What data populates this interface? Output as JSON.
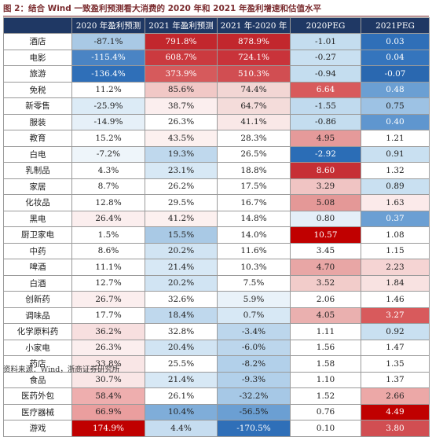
{
  "title": "图 2：结合 Wind 一致盈利预测看大消费的 2020 年和 2021 年盈利增速和估值水平",
  "headers": [
    "",
    "2020 年盈利预测",
    "2021 年盈利预测",
    "2021 年-2020 年",
    "2020PEG",
    "2021PEG"
  ],
  "rows": [
    {
      "name": "酒店",
      "v": [
        "-87.1%",
        "791.8%",
        "878.9%",
        "-1.01",
        "0.03"
      ],
      "bg": [
        "#a9c9e5",
        "#c2272d",
        "#c2272d",
        "#c4ddef",
        "#2f6fb8"
      ],
      "fg": [
        "#222",
        "#fff",
        "#fff",
        "#222",
        "#fff"
      ]
    },
    {
      "name": "电影",
      "v": [
        "-115.4%",
        "608.7%",
        "724.1%",
        "-0.27",
        "0.04"
      ],
      "bg": [
        "#4a84c4",
        "#cb3a3f",
        "#c9333a",
        "#c9e0f1",
        "#3575bd"
      ],
      "fg": [
        "#fff",
        "#fff",
        "#fff",
        "#222",
        "#fff"
      ]
    },
    {
      "name": "旅游",
      "v": [
        "-136.4%",
        "373.9%",
        "510.3%",
        "-0.94",
        "-0.07"
      ],
      "bg": [
        "#2f6fb8",
        "#d65a5c",
        "#d14e52",
        "#c4ddef",
        "#2a68b0"
      ],
      "fg": [
        "#fff",
        "#fff",
        "#fff",
        "#222",
        "#fff"
      ]
    },
    {
      "name": "免税",
      "v": [
        "11.2%",
        "85.6%",
        "74.4%",
        "6.64",
        "0.48"
      ],
      "bg": [
        "#ffffff",
        "#f1c8c6",
        "#f2d6d4",
        "#d85a5c",
        "#6b9fd3"
      ],
      "fg": [
        "#222",
        "#222",
        "#222",
        "#fff",
        "#fff"
      ]
    },
    {
      "name": "新零售",
      "v": [
        "-25.9%",
        "38.7%",
        "64.7%",
        "-1.55",
        "0.75"
      ],
      "bg": [
        "#dcebf6",
        "#fbeeee",
        "#f4dcda",
        "#c0daee",
        "#9dc2e4"
      ],
      "fg": [
        "#222",
        "#222",
        "#222",
        "#222",
        "#222"
      ]
    },
    {
      "name": "服装",
      "v": [
        "-14.9%",
        "26.3%",
        "41.1%",
        "-0.86",
        "0.40"
      ],
      "bg": [
        "#e6f0f8",
        "#ffffff",
        "#f9e8e7",
        "#c4ddef",
        "#5f96cf"
      ],
      "fg": [
        "#222",
        "#222",
        "#222",
        "#222",
        "#fff"
      ]
    },
    {
      "name": "教育",
      "v": [
        "15.2%",
        "43.5%",
        "28.3%",
        "4.95",
        "1.21"
      ],
      "bg": [
        "#ffffff",
        "#fcf0ef",
        "#ffffff",
        "#e59a9a",
        "#ffffff"
      ],
      "fg": [
        "#222",
        "#222",
        "#222",
        "#222",
        "#222"
      ]
    },
    {
      "name": "白电",
      "v": [
        "-7.2%",
        "19.3%",
        "26.5%",
        "-2.92",
        "0.91"
      ],
      "bg": [
        "#eef5fa",
        "#bfd8ed",
        "#ffffff",
        "#2b6db6",
        "#c9e0f1"
      ],
      "fg": [
        "#222",
        "#222",
        "#222",
        "#fff",
        "#222"
      ]
    },
    {
      "name": "乳制品",
      "v": [
        "4.3%",
        "23.1%",
        "18.8%",
        "8.60",
        "1.32"
      ],
      "bg": [
        "#ffffff",
        "#d7e8f5",
        "#ffffff",
        "#c62f35",
        "#ffffff"
      ],
      "fg": [
        "#222",
        "#222",
        "#222",
        "#fff",
        "#222"
      ]
    },
    {
      "name": "家居",
      "v": [
        "8.7%",
        "26.2%",
        "17.5%",
        "3.29",
        "0.89"
      ],
      "bg": [
        "#ffffff",
        "#ffffff",
        "#ffffff",
        "#f0c4c3",
        "#c9e0f1"
      ],
      "fg": [
        "#222",
        "#222",
        "#222",
        "#222",
        "#222"
      ]
    },
    {
      "name": "化妆品",
      "v": [
        "12.8%",
        "29.5%",
        "16.7%",
        "5.08",
        "1.63"
      ],
      "bg": [
        "#ffffff",
        "#ffffff",
        "#ffffff",
        "#e49897",
        "#fbeaea"
      ],
      "fg": [
        "#222",
        "#222",
        "#222",
        "#222",
        "#222"
      ]
    },
    {
      "name": "黑电",
      "v": [
        "26.4%",
        "41.2%",
        "14.8%",
        "0.80",
        "0.37"
      ],
      "bg": [
        "#fbeeee",
        "#fcf0ef",
        "#ffffff",
        "#e4eff8",
        "#6b9fd3"
      ],
      "fg": [
        "#222",
        "#222",
        "#222",
        "#222",
        "#fff"
      ]
    },
    {
      "name": "厨卫家电",
      "v": [
        "1.5%",
        "15.5%",
        "14.0%",
        "10.57",
        "1.08"
      ],
      "bg": [
        "#ffffff",
        "#a9c9e5",
        "#ffffff",
        "#c00000",
        "#ffffff"
      ],
      "fg": [
        "#222",
        "#222",
        "#222",
        "#fff",
        "#222"
      ]
    },
    {
      "name": "中药",
      "v": [
        "8.6%",
        "20.2%",
        "11.6%",
        "3.45",
        "1.15"
      ],
      "bg": [
        "#ffffff",
        "#d1e4f3",
        "#ffffff",
        "#ffffff",
        "#ffffff"
      ],
      "fg": [
        "#222",
        "#222",
        "#222",
        "#222",
        "#222"
      ]
    },
    {
      "name": "啤酒",
      "v": [
        "11.1%",
        "21.4%",
        "10.3%",
        "4.70",
        "2.23"
      ],
      "bg": [
        "#ffffff",
        "#d7e8f5",
        "#ffffff",
        "#e8a6a5",
        "#f5d4d3"
      ],
      "fg": [
        "#222",
        "#222",
        "#222",
        "#222",
        "#222"
      ]
    },
    {
      "name": "白酒",
      "v": [
        "12.7%",
        "20.2%",
        "7.5%",
        "3.52",
        "1.84"
      ],
      "bg": [
        "#ffffff",
        "#d1e4f3",
        "#ffffff",
        "#f2ccca",
        "#f8e2e1"
      ],
      "fg": [
        "#222",
        "#222",
        "#222",
        "#222",
        "#222"
      ]
    },
    {
      "name": "创新药",
      "v": [
        "26.7%",
        "32.6%",
        "5.9%",
        "2.06",
        "1.46"
      ],
      "bg": [
        "#fbeeee",
        "#ffffff",
        "#e9f2f9",
        "#ffffff",
        "#ffffff"
      ],
      "fg": [
        "#222",
        "#222",
        "#222",
        "#222",
        "#222"
      ]
    },
    {
      "name": "调味品",
      "v": [
        "17.7%",
        "18.4%",
        "0.7%",
        "4.05",
        "3.27"
      ],
      "bg": [
        "#ffffff",
        "#bfd8ed",
        "#d7e8f5",
        "#eab0af",
        "#d85a5c"
      ],
      "fg": [
        "#222",
        "#222",
        "#222",
        "#222",
        "#fff"
      ]
    },
    {
      "name": "化学原料药",
      "v": [
        "36.2%",
        "32.8%",
        "-3.4%",
        "1.11",
        "0.92"
      ],
      "bg": [
        "#f7dfdf",
        "#ffffff",
        "#bcd6ec",
        "#ffffff",
        "#c9e0f1"
      ],
      "fg": [
        "#222",
        "#222",
        "#222",
        "#222",
        "#222"
      ]
    },
    {
      "name": "小家电",
      "v": [
        "26.3%",
        "20.4%",
        "-6.0%",
        "1.56",
        "1.47"
      ],
      "bg": [
        "#fbeeee",
        "#d1e4f3",
        "#bcd6ec",
        "#ffffff",
        "#ffffff"
      ],
      "fg": [
        "#222",
        "#222",
        "#222",
        "#222",
        "#222"
      ]
    },
    {
      "name": "药店",
      "v": [
        "33.8%",
        "25.5%",
        "-8.2%",
        "1.58",
        "1.35"
      ],
      "bg": [
        "#f9e6e6",
        "#ffffff",
        "#b2d0ea",
        "#ffffff",
        "#ffffff"
      ],
      "fg": [
        "#222",
        "#222",
        "#222",
        "#222",
        "#222"
      ]
    },
    {
      "name": "食品",
      "v": [
        "30.7%",
        "21.4%",
        "-9.3%",
        "1.10",
        "1.37"
      ],
      "bg": [
        "#f9e6e6",
        "#d7e8f5",
        "#b2d0ea",
        "#ffffff",
        "#ffffff"
      ],
      "fg": [
        "#222",
        "#222",
        "#222",
        "#222",
        "#222"
      ]
    },
    {
      "name": "医药外包",
      "v": [
        "58.4%",
        "26.1%",
        "-32.2%",
        "1.52",
        "2.66"
      ],
      "bg": [
        "#eeaeae",
        "#ffffff",
        "#a6c8e6",
        "#ffffff",
        "#eca8a7"
      ],
      "fg": [
        "#222",
        "#222",
        "#222",
        "#222",
        "#222"
      ]
    },
    {
      "name": "医疗器械",
      "v": [
        "66.9%",
        "10.4%",
        "-56.5%",
        "0.76",
        "4.49"
      ],
      "bg": [
        "#ea9e9e",
        "#7fadd9",
        "#6b9fd3",
        "#ffffff",
        "#c00000"
      ],
      "fg": [
        "#222",
        "#222",
        "#222",
        "#222",
        "#fff"
      ]
    },
    {
      "name": "游戏",
      "v": [
        "174.9%",
        "4.4%",
        "-170.5%",
        "0.10",
        "3.80"
      ],
      "bg": [
        "#c00000",
        "#c6ddf0",
        "#2f6fb8",
        "#ffffff",
        "#d14e52"
      ],
      "fg": [
        "#fff",
        "#222",
        "#fff",
        "#222",
        "#fff"
      ]
    }
  ],
  "source": "资料来源：Wind，浙商证券研究所"
}
